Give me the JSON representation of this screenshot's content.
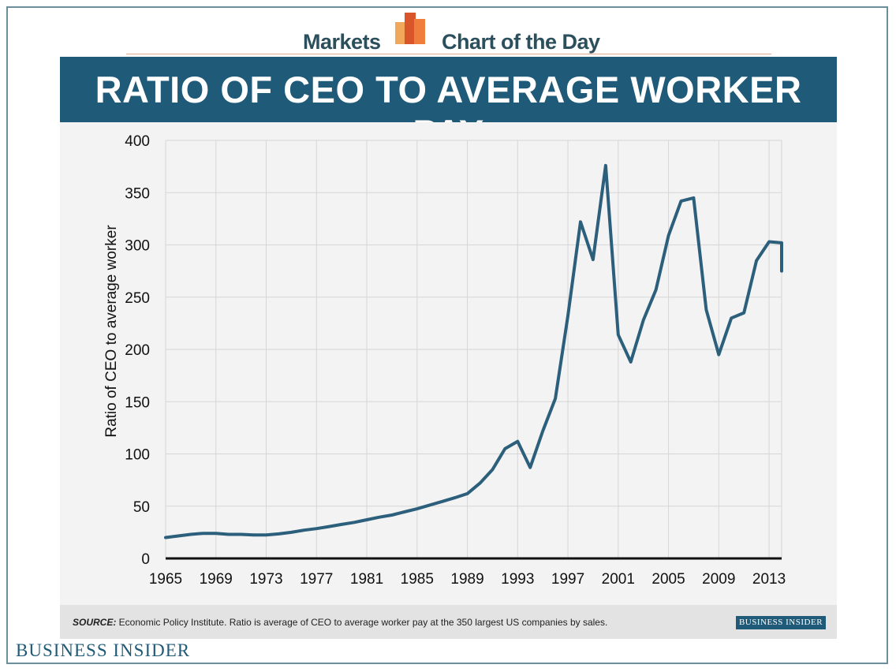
{
  "header": {
    "left_label": "Markets",
    "right_label": "Chart of the Day",
    "logo_icon": "bar-chart-icon"
  },
  "title": "RATIO OF CEO TO AVERAGE WORKER PAY",
  "source": {
    "prefix": "SOURCE:",
    "text": " Economic Policy Institute. Ratio is average of CEO to average worker pay at the 350 largest US companies by sales."
  },
  "badge": "BUSINESS INSIDER",
  "footer_brand": "BUSINESS INSIDER",
  "colors": {
    "line": "#2c5f7c",
    "title_bar": "#1f5a78",
    "grid": "#d6d6d6"
  },
  "chart_data": {
    "type": "line",
    "title": "RATIO OF CEO TO AVERAGE WORKER PAY",
    "xlabel": "",
    "ylabel": "Ratio of CEO to average worker",
    "xlim": [
      1965,
      2014
    ],
    "ylim": [
      0,
      400
    ],
    "x_ticks": [
      1965,
      1969,
      1973,
      1977,
      1981,
      1985,
      1989,
      1993,
      1997,
      2001,
      2005,
      2009,
      2013
    ],
    "y_ticks": [
      0,
      50,
      100,
      150,
      200,
      250,
      300,
      350,
      400
    ],
    "grid": true,
    "legend": "none",
    "series": [
      {
        "x": [
          1965,
          1966,
          1967,
          1968,
          1969,
          1970,
          1971,
          1972,
          1973,
          1974,
          1975,
          1976,
          1977,
          1978,
          1979,
          1980,
          1981,
          1982,
          1983,
          1984,
          1985,
          1986,
          1987,
          1988,
          1989,
          1990,
          1991,
          1992,
          1993,
          1994,
          1995,
          1996,
          1997,
          1998,
          1999,
          2000,
          2001,
          2002,
          2003,
          2004,
          2005,
          2006,
          2007,
          2008,
          2009,
          2010,
          2011,
          2012,
          2013,
          2014
        ],
        "y": [
          20,
          21.5,
          23,
          24,
          24,
          23,
          23,
          22.5,
          22.5,
          23.5,
          25,
          27,
          28.5,
          30.5,
          32.5,
          34.5,
          37,
          39.5,
          41.5,
          44.5,
          47.5,
          51,
          54.5,
          58,
          62,
          72,
          85,
          105,
          112,
          87,
          122,
          153,
          232,
          322,
          286,
          376,
          214,
          188,
          228,
          257,
          309,
          342,
          345,
          238,
          195,
          230,
          235,
          285,
          303,
          302
        ]
      },
      {
        "x": [
          2014
        ],
        "y": [
          275
        ]
      }
    ]
  }
}
